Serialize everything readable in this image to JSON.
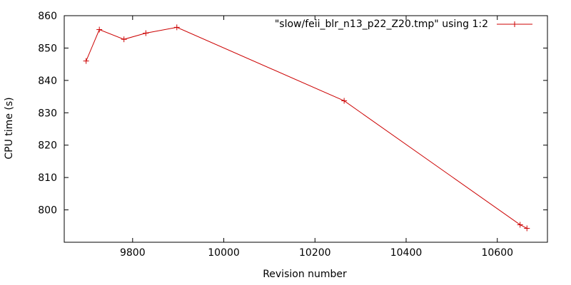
{
  "chart_data": {
    "type": "line",
    "title": "",
    "xlabel": "Revision number",
    "ylabel": "CPU time (s)",
    "xlim": [
      9650,
      10710
    ],
    "ylim": [
      790,
      860
    ],
    "xticks": [
      9800,
      10000,
      10200,
      10400,
      10600
    ],
    "yticks": [
      800,
      810,
      820,
      830,
      840,
      850,
      860
    ],
    "grid": false,
    "legend": "top-right",
    "series": [
      {
        "name": "\"slow/feii_blr_n13_p22_Z20.tmp\" using 1:2",
        "color": "#cc0000",
        "marker": "plus",
        "x": [
          9698,
          9727,
          9781,
          9829,
          9897,
          10264,
          10650,
          10665
        ],
        "y": [
          846,
          855.7,
          852.7,
          854.6,
          856.4,
          833.7,
          795.4,
          794.3
        ]
      }
    ]
  }
}
